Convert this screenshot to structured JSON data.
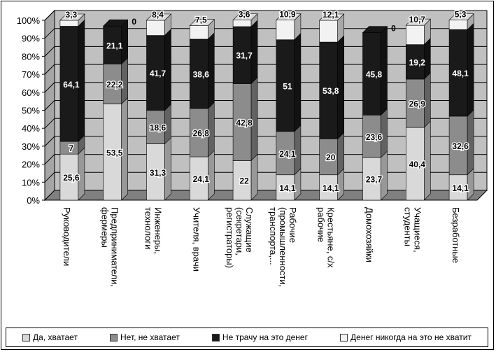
{
  "chart_data": {
    "type": "bar",
    "stacked": true,
    "normalized": true,
    "three_d": true,
    "categories": [
      "Руководители",
      "Предприниматели, фермеры",
      "Инженеры, технологи",
      "Учителя, врачи",
      "Служащие (секретари, регистраторы)",
      "Рабочие (промышленности, транспорта,...",
      "Крестьяне, с/х рабочие",
      "Домохозяйки",
      "Учащиеся, студенты",
      "Безработные"
    ],
    "series": [
      {
        "name": "Да, хватает",
        "color": "#d9d9d9",
        "values": [
          25.6,
          53.5,
          31.3,
          24.1,
          22,
          14.1,
          14.1,
          23.7,
          40.4,
          14.1
        ]
      },
      {
        "name": "Нет, не хватает",
        "color": "#8c8c8c",
        "values": [
          7,
          22.2,
          18.6,
          26.8,
          42.8,
          24.1,
          20,
          23.6,
          26.9,
          32.6
        ]
      },
      {
        "name": "Не трачу на это денег",
        "color": "#1a1a1a",
        "values": [
          64.1,
          21.1,
          41.7,
          38.6,
          31.7,
          51,
          53.8,
          45.8,
          19.2,
          48.1
        ]
      },
      {
        "name": "Денег никогда на это не хватит",
        "color": "#f2f2f2",
        "values": [
          3.3,
          0,
          8.4,
          7.5,
          3.6,
          10.9,
          12.1,
          0,
          10.7,
          5.3
        ]
      }
    ],
    "data_labels": [
      [
        "25,6",
        "53,5",
        "31,3",
        "24,1",
        "22",
        "14,1",
        "14,1",
        "23,7",
        "40,4",
        "14,1"
      ],
      [
        "7",
        "22,2",
        "18,6",
        "26,8",
        "42,8",
        "24,1",
        "20",
        "23,6",
        "26,9",
        "32,6"
      ],
      [
        "64,1",
        "21,1",
        "41,7",
        "38,6",
        "31,7",
        "51",
        "53,8",
        "45,8",
        "19,2",
        "48,1"
      ],
      [
        "3,3",
        "0",
        "8,4",
        "7,5",
        "3,6",
        "10,9",
        "12,1",
        "0",
        "10,7",
        "5,3"
      ]
    ],
    "yticks": [
      "0%",
      "10%",
      "20%",
      "30%",
      "40%",
      "50%",
      "60%",
      "70%",
      "80%",
      "90%",
      "100%"
    ],
    "ylim": [
      0,
      100
    ],
    "grid": true,
    "legend_position": "bottom",
    "wall_color": "#c0c0c0",
    "floor_color": "#808080"
  }
}
